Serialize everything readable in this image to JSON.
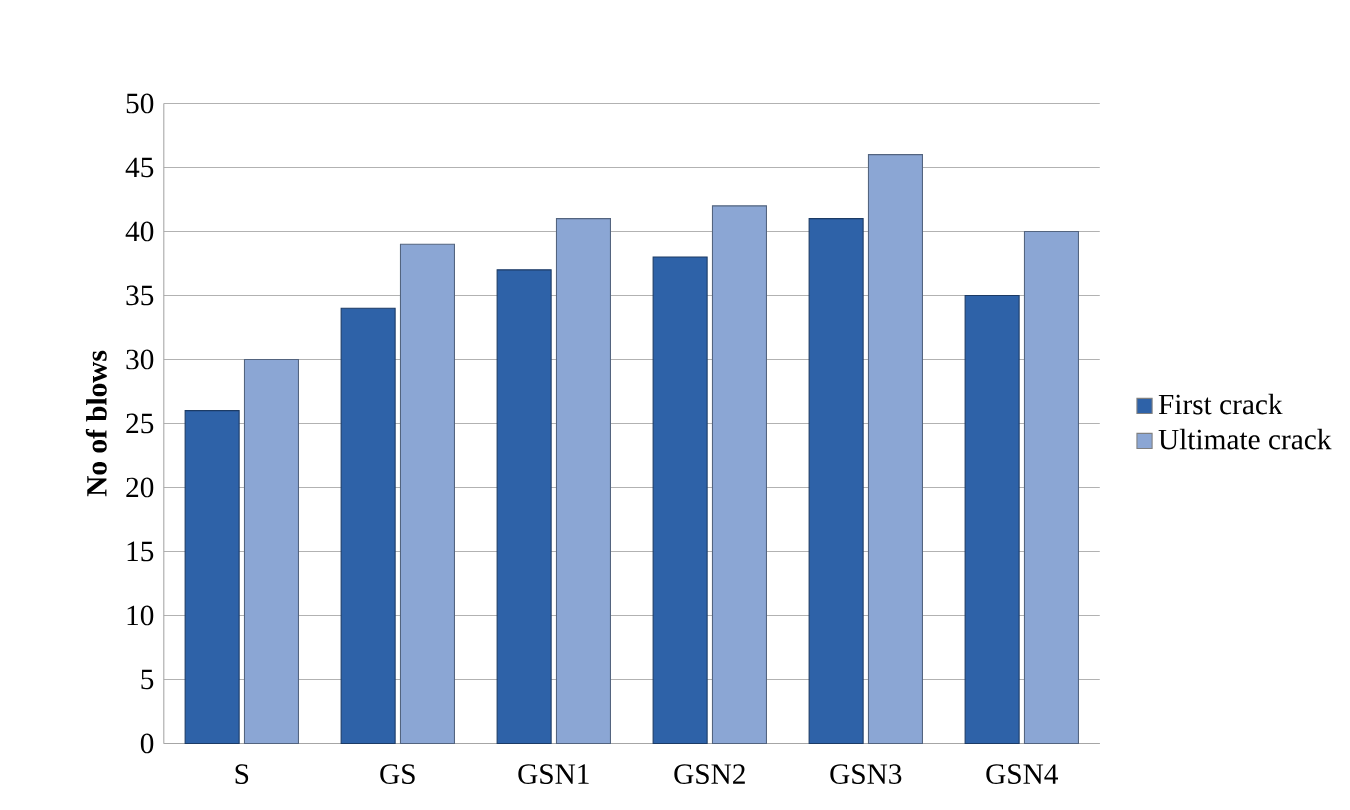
{
  "chart_data": {
    "type": "bar",
    "ylabel": "No of blows",
    "categories": [
      "S",
      "GS",
      "GSN1",
      "GSN2",
      "GSN3",
      "GSN4"
    ],
    "series": [
      {
        "name": "First crack",
        "color": "#2e62a8",
        "values": [
          26,
          34,
          37,
          38,
          41,
          35
        ]
      },
      {
        "name": "Ultimate crack",
        "color": "#8ba6d4",
        "values": [
          30,
          39,
          41,
          42,
          46,
          40
        ]
      }
    ],
    "ylim": [
      0,
      50
    ],
    "yticks": [
      0,
      5,
      10,
      15,
      20,
      25,
      30,
      35,
      40,
      45,
      50
    ],
    "grid": "y",
    "legend": "right"
  }
}
